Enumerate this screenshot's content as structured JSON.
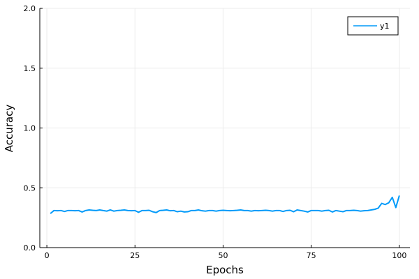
{
  "chart_data": {
    "type": "line",
    "title": "",
    "xlabel": "Epochs",
    "ylabel": "Accuracy",
    "xlim": [
      -2,
      103
    ],
    "ylim": [
      0,
      2
    ],
    "xticks": [
      0,
      25,
      50,
      75,
      100
    ],
    "xtick_labels": [
      "0",
      "25",
      "50",
      "75",
      "100"
    ],
    "yticks": [
      0,
      0.5,
      1,
      1.5,
      2
    ],
    "ytick_labels": [
      "0.0",
      "0.5",
      "1.0",
      "1.5",
      "2.0"
    ],
    "grid": true,
    "legend": {
      "placement": "top-right",
      "entries": [
        "y1"
      ]
    },
    "colors": {
      "series": "#009af9",
      "grid": "#ebebeb",
      "axis": "#000000"
    },
    "series": [
      {
        "name": "y1",
        "x": [
          1,
          2,
          3,
          4,
          5,
          6,
          7,
          8,
          9,
          10,
          11,
          12,
          13,
          14,
          15,
          16,
          17,
          18,
          19,
          20,
          21,
          22,
          23,
          24,
          25,
          26,
          27,
          28,
          29,
          30,
          31,
          32,
          33,
          34,
          35,
          36,
          37,
          38,
          39,
          40,
          41,
          42,
          43,
          44,
          45,
          46,
          47,
          48,
          49,
          50,
          51,
          52,
          53,
          54,
          55,
          56,
          57,
          58,
          59,
          60,
          61,
          62,
          63,
          64,
          65,
          66,
          67,
          68,
          69,
          70,
          71,
          72,
          73,
          74,
          75,
          76,
          77,
          78,
          79,
          80,
          81,
          82,
          83,
          84,
          85,
          86,
          87,
          88,
          89,
          90,
          91,
          92,
          93,
          94,
          95,
          96,
          97,
          98,
          99,
          100
        ],
        "values": [
          0.285,
          0.31,
          0.308,
          0.31,
          0.302,
          0.31,
          0.31,
          0.308,
          0.31,
          0.298,
          0.31,
          0.315,
          0.312,
          0.31,
          0.315,
          0.31,
          0.305,
          0.315,
          0.305,
          0.31,
          0.312,
          0.315,
          0.31,
          0.308,
          0.31,
          0.295,
          0.31,
          0.31,
          0.312,
          0.3,
          0.293,
          0.31,
          0.312,
          0.315,
          0.308,
          0.31,
          0.3,
          0.305,
          0.298,
          0.3,
          0.31,
          0.31,
          0.315,
          0.308,
          0.305,
          0.31,
          0.31,
          0.305,
          0.31,
          0.312,
          0.31,
          0.308,
          0.31,
          0.312,
          0.315,
          0.31,
          0.31,
          0.305,
          0.31,
          0.308,
          0.31,
          0.312,
          0.31,
          0.305,
          0.31,
          0.31,
          0.302,
          0.31,
          0.312,
          0.3,
          0.315,
          0.31,
          0.305,
          0.298,
          0.31,
          0.31,
          0.31,
          0.305,
          0.31,
          0.312,
          0.298,
          0.31,
          0.305,
          0.3,
          0.31,
          0.31,
          0.312,
          0.31,
          0.305,
          0.308,
          0.31,
          0.315,
          0.32,
          0.33,
          0.37,
          0.36,
          0.375,
          0.42,
          0.335,
          0.435
        ]
      }
    ]
  }
}
